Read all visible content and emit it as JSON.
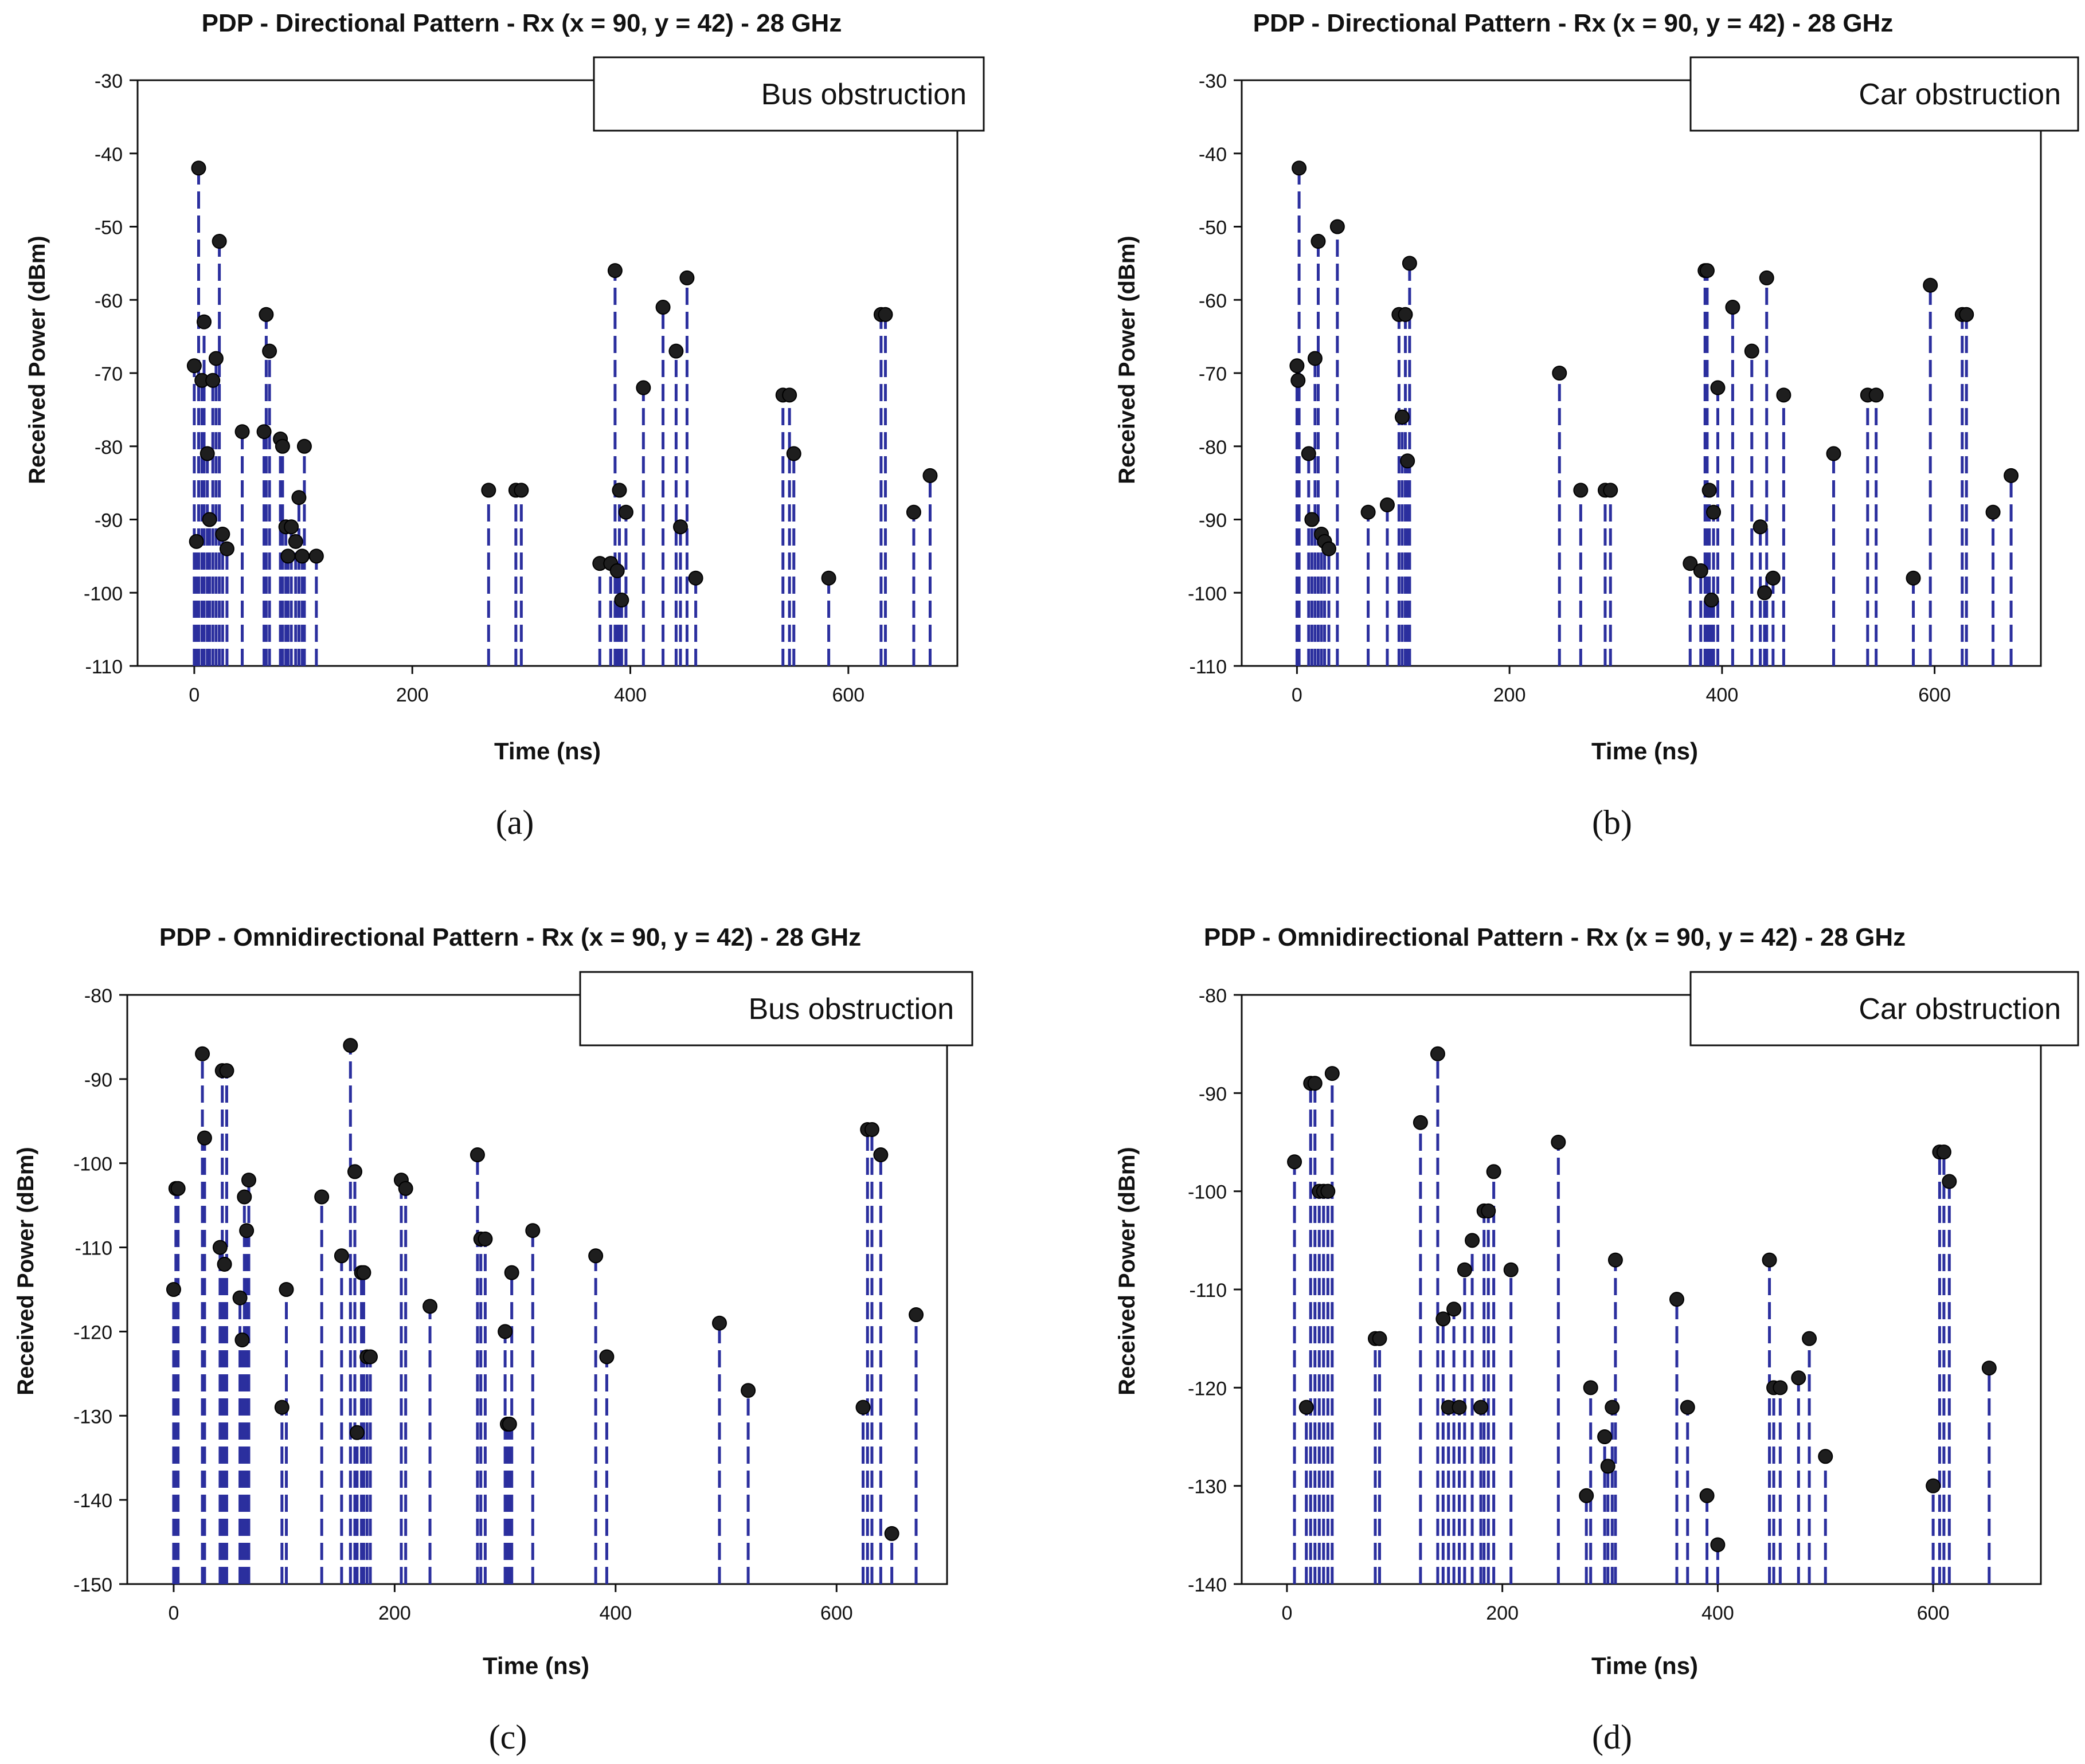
{
  "chart_data": [
    {
      "type": "stem",
      "title": "PDP - Directional Pattern - Rx (x = 90, y = 42) - 28 GHz",
      "legend": "Bus obstruction",
      "legend_position": "top-right",
      "xlabel": "Time (ns)",
      "ylabel": "Received Power (dBm)",
      "xlim": [
        -52,
        700
      ],
      "ylim": [
        -110,
        -30
      ],
      "xticks": [
        0,
        200,
        400,
        600
      ],
      "yticks": [
        -110,
        -100,
        -90,
        -80,
        -70,
        -60,
        -50,
        -40,
        -30
      ],
      "caption": "(a)",
      "colors": {
        "stem": "#2b2f9e",
        "marker": "#1e1e1e"
      },
      "x": [
        0,
        2,
        4,
        7,
        9,
        12,
        14,
        17,
        20,
        23,
        26,
        30,
        44,
        64,
        66,
        69,
        79,
        81,
        84,
        86,
        89,
        93,
        96,
        99,
        101,
        112,
        270,
        295,
        300,
        372,
        382,
        386,
        388,
        390,
        392,
        396,
        412,
        430,
        442,
        446,
        452,
        460,
        540,
        546,
        550,
        582,
        630,
        634,
        660,
        675
      ],
      "y": [
        -69,
        -93,
        -42,
        -71,
        -63,
        -81,
        -90,
        -71,
        -68,
        -52,
        -92,
        -94,
        -78,
        -78,
        -62,
        -67,
        -79,
        -80,
        -91,
        -95,
        -91,
        -93,
        -87,
        -95,
        -80,
        -95,
        -86,
        -86,
        -86,
        -96,
        -96,
        -56,
        -97,
        -86,
        -101,
        -89,
        -72,
        -61,
        -67,
        -91,
        -57,
        -98,
        -73,
        -73,
        -81,
        -98,
        -62,
        -62,
        -89,
        -84
      ]
    },
    {
      "type": "stem",
      "title": "PDP - Directional Pattern - Rx (x = 90, y = 42) - 28 GHz",
      "legend": "Car obstruction",
      "legend_position": "top-right",
      "xlabel": "Time (ns)",
      "ylabel": "Received Power (dBm)",
      "xlim": [
        -52,
        700
      ],
      "ylim": [
        -110,
        -30
      ],
      "xticks": [
        0,
        200,
        400,
        600
      ],
      "yticks": [
        -110,
        -100,
        -90,
        -80,
        -70,
        -60,
        -50,
        -40,
        -30
      ],
      "caption": "(b)",
      "colors": {
        "stem": "#2b2f9e",
        "marker": "#1e1e1e"
      },
      "x": [
        0,
        1,
        2,
        11,
        14,
        17,
        20,
        23,
        26,
        30,
        38,
        67,
        85,
        96,
        99,
        102,
        104,
        106,
        247,
        267,
        290,
        295,
        370,
        380,
        384,
        386,
        388,
        390,
        392,
        396,
        410,
        428,
        436,
        440,
        442,
        448,
        458,
        505,
        537,
        545,
        580,
        596,
        626,
        630,
        655,
        672
      ],
      "y": [
        -69,
        -71,
        -42,
        -81,
        -90,
        -68,
        -52,
        -92,
        -93,
        -94,
        -50,
        -89,
        -88,
        -62,
        -76,
        -62,
        -82,
        -55,
        -70,
        -86,
        -86,
        -86,
        -96,
        -97,
        -56,
        -56,
        -86,
        -101,
        -89,
        -72,
        -61,
        -67,
        -91,
        -100,
        -57,
        -98,
        -73,
        -81,
        -73,
        -73,
        -98,
        -58,
        -62,
        -62,
        -89,
        -84
      ]
    },
    {
      "type": "stem",
      "title": "PDP - Omnidirectional Pattern - Rx (x = 90, y = 42) - 28 GHz",
      "legend": "Bus obstruction",
      "legend_position": "top-right",
      "xlabel": "Time (ns)",
      "ylabel": "Received Power (dBm)",
      "xlim": [
        -42,
        700
      ],
      "ylim": [
        -150,
        -80
      ],
      "xticks": [
        0,
        200,
        400,
        600
      ],
      "yticks": [
        -150,
        -140,
        -130,
        -120,
        -110,
        -100,
        -90,
        -80
      ],
      "caption": "(c)",
      "colors": {
        "stem": "#2b2f9e",
        "marker": "#1e1e1e"
      },
      "x": [
        0,
        2,
        4,
        26,
        28,
        42,
        44,
        46,
        48,
        60,
        62,
        64,
        66,
        68,
        98,
        102,
        134,
        152,
        160,
        164,
        166,
        170,
        172,
        175,
        178,
        206,
        210,
        232,
        275,
        278,
        282,
        300,
        302,
        304,
        306,
        325,
        382,
        392,
        494,
        520,
        624,
        628,
        632,
        640,
        650,
        672
      ],
      "y": [
        -115,
        -103,
        -103,
        -87,
        -97,
        -110,
        -89,
        -112,
        -89,
        -116,
        -121,
        -104,
        -108,
        -102,
        -129,
        -115,
        -104,
        -111,
        -86,
        -101,
        -132,
        -113,
        -113,
        -123,
        -123,
        -102,
        -103,
        -117,
        -99,
        -109,
        -109,
        -120,
        -131,
        -131,
        -113,
        -108,
        -111,
        -123,
        -119,
        -127,
        -129,
        -96,
        -96,
        -99,
        -144,
        -118
      ]
    },
    {
      "type": "stem",
      "title": "PDP - Omnidirectional Pattern - Rx (x = 90, y = 42) - 28 GHz",
      "legend": "Car obstruction",
      "legend_position": "top-right",
      "xlabel": "Time (ns)",
      "ylabel": "Received Power (dBm)",
      "xlim": [
        -42,
        700
      ],
      "ylim": [
        -140,
        -80
      ],
      "xticks": [
        0,
        200,
        400,
        600
      ],
      "yticks": [
        -140,
        -130,
        -120,
        -110,
        -100,
        -90,
        -80
      ],
      "caption": "(d)",
      "colors": {
        "stem": "#2b2f9e",
        "marker": "#1e1e1e"
      },
      "x": [
        7,
        18,
        22,
        26,
        30,
        34,
        38,
        42,
        82,
        86,
        124,
        140,
        145,
        150,
        155,
        160,
        165,
        172,
        180,
        183,
        187,
        192,
        208,
        252,
        278,
        282,
        295,
        298,
        302,
        305,
        362,
        372,
        390,
        400,
        448,
        452,
        458,
        475,
        485,
        500,
        600,
        606,
        610,
        615,
        652
      ],
      "y": [
        -97,
        -122,
        -89,
        -89,
        -100,
        -100,
        -100,
        -88,
        -115,
        -115,
        -93,
        -86,
        -113,
        -122,
        -112,
        -122,
        -108,
        -105,
        -122,
        -102,
        -102,
        -98,
        -108,
        -95,
        -131,
        -120,
        -125,
        -128,
        -122,
        -107,
        -111,
        -122,
        -131,
        -136,
        -107,
        -120,
        -120,
        -119,
        -115,
        -127,
        -130,
        -96,
        -96,
        -99,
        -118
      ]
    }
  ]
}
